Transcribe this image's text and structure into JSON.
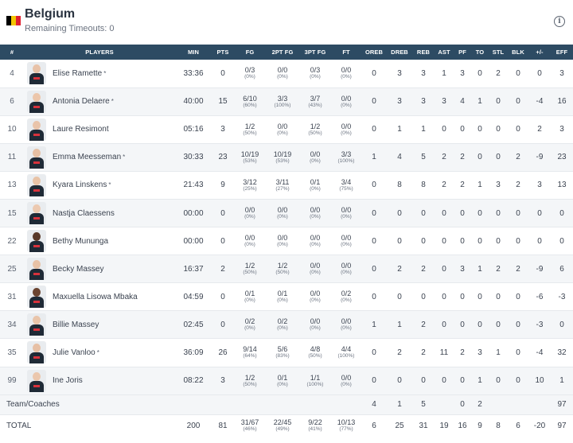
{
  "team": {
    "name": "Belgium",
    "timeouts_text": "Remaining Timeouts: 0",
    "flag_colors": [
      "#000000",
      "#f2c500",
      "#e0202f"
    ]
  },
  "columns": [
    "#",
    "PLAYERS",
    "MIN",
    "PTS",
    "FG",
    "2PT FG",
    "3PT FG",
    "FT",
    "OREB",
    "DREB",
    "REB",
    "AST",
    "PF",
    "TO",
    "STL",
    "BLK",
    "+/-",
    "EFF"
  ],
  "players": [
    {
      "num": "4",
      "name": "Elise Ramette",
      "starter": "*",
      "skin": "#e8c2a8",
      "min": "33:36",
      "pts": "0",
      "fg": "0/3",
      "fg_pct": "(0%)",
      "fg2": "0/0",
      "fg2_pct": "(0%)",
      "fg3": "0/3",
      "fg3_pct": "(0%)",
      "ft": "0/0",
      "ft_pct": "(0%)",
      "oreb": "0",
      "dreb": "3",
      "reb": "3",
      "ast": "1",
      "pf": "3",
      "to": "0",
      "stl": "2",
      "blk": "0",
      "pm": "0",
      "eff": "3"
    },
    {
      "num": "6",
      "name": "Antonia Delaere",
      "starter": "*",
      "skin": "#ecc6ab",
      "min": "40:00",
      "pts": "15",
      "fg": "6/10",
      "fg_pct": "(60%)",
      "fg2": "3/3",
      "fg2_pct": "(100%)",
      "fg3": "3/7",
      "fg3_pct": "(43%)",
      "ft": "0/0",
      "ft_pct": "(0%)",
      "oreb": "0",
      "dreb": "3",
      "reb": "3",
      "ast": "3",
      "pf": "4",
      "to": "1",
      "stl": "0",
      "blk": "0",
      "pm": "-4",
      "eff": "16"
    },
    {
      "num": "10",
      "name": "Laure Resimont",
      "starter": "",
      "skin": "#e9c4aa",
      "min": "05:16",
      "pts": "3",
      "fg": "1/2",
      "fg_pct": "(50%)",
      "fg2": "0/0",
      "fg2_pct": "(0%)",
      "fg3": "1/2",
      "fg3_pct": "(50%)",
      "ft": "0/0",
      "ft_pct": "(0%)",
      "oreb": "0",
      "dreb": "1",
      "reb": "1",
      "ast": "0",
      "pf": "0",
      "to": "0",
      "stl": "0",
      "blk": "0",
      "pm": "2",
      "eff": "3"
    },
    {
      "num": "11",
      "name": "Emma Meesseman",
      "starter": "*",
      "skin": "#e6bfa3",
      "min": "30:33",
      "pts": "23",
      "fg": "10/19",
      "fg_pct": "(53%)",
      "fg2": "10/19",
      "fg2_pct": "(53%)",
      "fg3": "0/0",
      "fg3_pct": "(0%)",
      "ft": "3/3",
      "ft_pct": "(100%)",
      "oreb": "1",
      "dreb": "4",
      "reb": "5",
      "ast": "2",
      "pf": "2",
      "to": "0",
      "stl": "0",
      "blk": "2",
      "pm": "-9",
      "eff": "23"
    },
    {
      "num": "13",
      "name": "Kyara Linskens",
      "starter": "*",
      "skin": "#e8c3a7",
      "min": "21:43",
      "pts": "9",
      "fg": "3/12",
      "fg_pct": "(25%)",
      "fg2": "3/11",
      "fg2_pct": "(27%)",
      "fg3": "0/1",
      "fg3_pct": "(0%)",
      "ft": "3/4",
      "ft_pct": "(75%)",
      "oreb": "0",
      "dreb": "8",
      "reb": "8",
      "ast": "2",
      "pf": "2",
      "to": "1",
      "stl": "3",
      "blk": "2",
      "pm": "3",
      "eff": "13"
    },
    {
      "num": "15",
      "name": "Nastja Claessens",
      "starter": "",
      "skin": "#ecc9b0",
      "min": "00:00",
      "pts": "0",
      "fg": "0/0",
      "fg_pct": "(0%)",
      "fg2": "0/0",
      "fg2_pct": "(0%)",
      "fg3": "0/0",
      "fg3_pct": "(0%)",
      "ft": "0/0",
      "ft_pct": "(0%)",
      "oreb": "0",
      "dreb": "0",
      "reb": "0",
      "ast": "0",
      "pf": "0",
      "to": "0",
      "stl": "0",
      "blk": "0",
      "pm": "0",
      "eff": "0"
    },
    {
      "num": "22",
      "name": "Bethy Mununga",
      "starter": "",
      "skin": "#5a3a2a",
      "min": "00:00",
      "pts": "0",
      "fg": "0/0",
      "fg_pct": "(0%)",
      "fg2": "0/0",
      "fg2_pct": "(0%)",
      "fg3": "0/0",
      "fg3_pct": "(0%)",
      "ft": "0/0",
      "ft_pct": "(0%)",
      "oreb": "0",
      "dreb": "0",
      "reb": "0",
      "ast": "0",
      "pf": "0",
      "to": "0",
      "stl": "0",
      "blk": "0",
      "pm": "0",
      "eff": "0"
    },
    {
      "num": "25",
      "name": "Becky Massey",
      "starter": "",
      "skin": "#e8c2a6",
      "min": "16:37",
      "pts": "2",
      "fg": "1/2",
      "fg_pct": "(50%)",
      "fg2": "1/2",
      "fg2_pct": "(50%)",
      "fg3": "0/0",
      "fg3_pct": "(0%)",
      "ft": "0/0",
      "ft_pct": "(0%)",
      "oreb": "0",
      "dreb": "2",
      "reb": "2",
      "ast": "0",
      "pf": "3",
      "to": "1",
      "stl": "2",
      "blk": "2",
      "pm": "-9",
      "eff": "6"
    },
    {
      "num": "31",
      "name": "Maxuella Lisowa Mbaka",
      "starter": "",
      "skin": "#6b4430",
      "min": "04:59",
      "pts": "0",
      "fg": "0/1",
      "fg_pct": "(0%)",
      "fg2": "0/1",
      "fg2_pct": "(0%)",
      "fg3": "0/0",
      "fg3_pct": "(0%)",
      "ft": "0/2",
      "ft_pct": "(0%)",
      "oreb": "0",
      "dreb": "0",
      "reb": "0",
      "ast": "0",
      "pf": "0",
      "to": "0",
      "stl": "0",
      "blk": "0",
      "pm": "-6",
      "eff": "-3"
    },
    {
      "num": "34",
      "name": "Billie Massey",
      "starter": "",
      "skin": "#e9c5aa",
      "min": "02:45",
      "pts": "0",
      "fg": "0/2",
      "fg_pct": "(0%)",
      "fg2": "0/2",
      "fg2_pct": "(0%)",
      "fg3": "0/0",
      "fg3_pct": "(0%)",
      "ft": "0/0",
      "ft_pct": "(0%)",
      "oreb": "1",
      "dreb": "1",
      "reb": "2",
      "ast": "0",
      "pf": "0",
      "to": "0",
      "stl": "0",
      "blk": "0",
      "pm": "-3",
      "eff": "0"
    },
    {
      "num": "35",
      "name": "Julie Vanloo",
      "starter": "*",
      "skin": "#e7c0a5",
      "min": "36:09",
      "pts": "26",
      "fg": "9/14",
      "fg_pct": "(64%)",
      "fg2": "5/6",
      "fg2_pct": "(83%)",
      "fg3": "4/8",
      "fg3_pct": "(50%)",
      "ft": "4/4",
      "ft_pct": "(100%)",
      "oreb": "0",
      "dreb": "2",
      "reb": "2",
      "ast": "11",
      "pf": "2",
      "to": "3",
      "stl": "1",
      "blk": "0",
      "pm": "-4",
      "eff": "32"
    },
    {
      "num": "99",
      "name": "Ine Joris",
      "starter": "",
      "skin": "#ebc7ad",
      "min": "08:22",
      "pts": "3",
      "fg": "1/2",
      "fg_pct": "(50%)",
      "fg2": "0/1",
      "fg2_pct": "(0%)",
      "fg3": "1/1",
      "fg3_pct": "(100%)",
      "ft": "0/0",
      "ft_pct": "(0%)",
      "oreb": "0",
      "dreb": "0",
      "reb": "0",
      "ast": "0",
      "pf": "0",
      "to": "1",
      "stl": "0",
      "blk": "0",
      "pm": "10",
      "eff": "1"
    }
  ],
  "team_coaches": {
    "label": "Team/Coaches",
    "oreb": "4",
    "dreb": "1",
    "reb": "5",
    "ast": "",
    "pf": "0",
    "to": "2",
    "stl": "",
    "blk": "",
    "pm": "",
    "eff": "97"
  },
  "total": {
    "label": "TOTAL",
    "min": "200",
    "pts": "81",
    "fg": "31/67",
    "fg_pct": "(46%)",
    "fg2": "22/45",
    "fg2_pct": "(49%)",
    "fg3": "9/22",
    "fg3_pct": "(41%)",
    "ft": "10/13",
    "ft_pct": "(77%)",
    "oreb": "6",
    "dreb": "25",
    "reb": "31",
    "ast": "19",
    "pf": "16",
    "to": "9",
    "stl": "8",
    "blk": "6",
    "pm": "-20",
    "eff": "97"
  },
  "icons": {
    "info": "info-icon"
  },
  "colors": {
    "header_bg": "#2d4b63",
    "row_alt": "#f4f6f8"
  }
}
